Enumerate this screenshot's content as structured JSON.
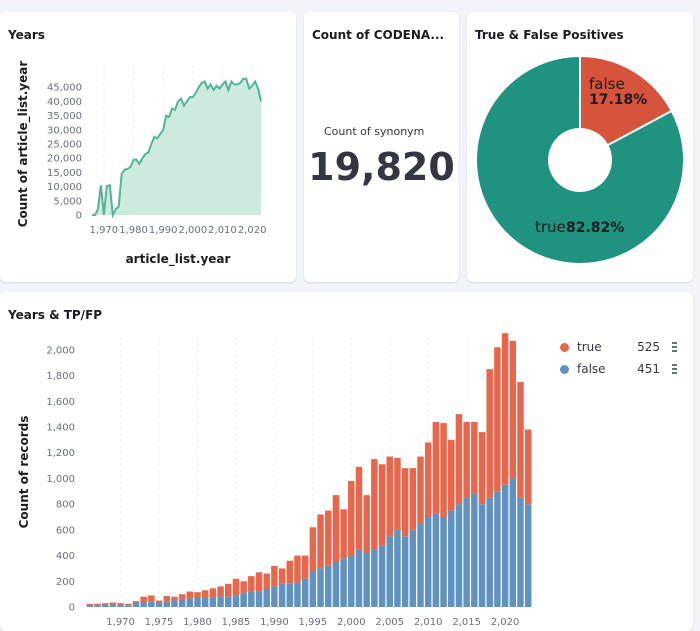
{
  "panels": {
    "years": {
      "title": "Years"
    },
    "count": {
      "title": "Count of CODENA...",
      "metric_label": "Count of synonym",
      "metric_value": "19,820"
    },
    "tf": {
      "title": "True & False Positives"
    },
    "ytf": {
      "title": "Years & TP/FP"
    }
  },
  "colors": {
    "true": "#e7664c",
    "false": "#6092c0",
    "donut_true": "#209280",
    "donut_false": "#d6533c",
    "area_line": "#54b399",
    "area_fill": "#cdeadf"
  },
  "chart_data": [
    {
      "type": "area",
      "title": "Years",
      "xlabel": "article_list.year",
      "ylabel": "Count of article_list.year",
      "xlim": [
        1966,
        2024
      ],
      "ylim": [
        0,
        50000
      ],
      "xticks": [
        "1,970",
        "1,980",
        "1,990",
        "2,000",
        "2,010",
        "2,020"
      ],
      "yticks": [
        "0",
        "5,000",
        "10,000",
        "15,000",
        "20,000",
        "25,000",
        "30,000",
        "35,000",
        "40,000",
        "45,000"
      ],
      "x": [
        1966,
        1967,
        1968,
        1969,
        1970,
        1971,
        1972,
        1973,
        1974,
        1975,
        1976,
        1977,
        1978,
        1979,
        1980,
        1981,
        1982,
        1983,
        1984,
        1985,
        1986,
        1987,
        1988,
        1989,
        1990,
        1991,
        1992,
        1993,
        1994,
        1995,
        1996,
        1997,
        1998,
        1999,
        2000,
        2001,
        2002,
        2003,
        2004,
        2005,
        2006,
        2007,
        2008,
        2009,
        2010,
        2011,
        2012,
        2013,
        2014,
        2015,
        2016,
        2017,
        2018,
        2019,
        2020,
        2021,
        2022,
        2023
      ],
      "y": [
        0,
        0,
        2000,
        10500,
        0,
        10200,
        10500,
        0,
        2000,
        3000,
        14500,
        16000,
        16200,
        17000,
        19500,
        19500,
        18000,
        20000,
        21500,
        22000,
        25000,
        27500,
        27000,
        28500,
        30000,
        35000,
        34500,
        37500,
        37000,
        40000,
        41000,
        38500,
        40000,
        41500,
        41500,
        43000,
        45000,
        46500,
        47000,
        44500,
        46000,
        44000,
        45500,
        44500,
        46000,
        47000,
        44000,
        47000,
        46000,
        46000,
        46500,
        48000,
        48000,
        44500,
        45500,
        47000,
        44500,
        40000
      ]
    },
    {
      "type": "pie",
      "title": "True & False Positives",
      "labels": [
        "true",
        "false"
      ],
      "values": [
        82.82,
        17.18
      ],
      "display": [
        "82.82%",
        "17.18%"
      ]
    },
    {
      "type": "bar",
      "stacked": true,
      "title": "Years & TP/FP",
      "ylabel": "Count of records",
      "ylim": [
        0,
        2100
      ],
      "yticks": [
        "0",
        "200",
        "400",
        "600",
        "800",
        "1,000",
        "1,200",
        "1,400",
        "1,600",
        "1,800",
        "2,000"
      ],
      "xticks": [
        "1,970",
        "1,975",
        "1,980",
        "1,985",
        "1,990",
        "1,995",
        "2,000",
        "2,005",
        "2,010",
        "2,015",
        "2,020"
      ],
      "categories": [
        1966,
        1967,
        1968,
        1969,
        1970,
        1971,
        1972,
        1973,
        1974,
        1975,
        1976,
        1977,
        1978,
        1979,
        1980,
        1981,
        1982,
        1983,
        1984,
        1985,
        1986,
        1987,
        1988,
        1989,
        1990,
        1991,
        1992,
        1993,
        1994,
        1995,
        1996,
        1997,
        1998,
        1999,
        2000,
        2001,
        2002,
        2003,
        2004,
        2005,
        2006,
        2007,
        2008,
        2009,
        2010,
        2011,
        2012,
        2013,
        2014,
        2015,
        2016,
        2017,
        2018,
        2019,
        2020,
        2021,
        2022,
        2023
      ],
      "legend": [
        {
          "name": "true",
          "value": "525"
        },
        {
          "name": "false",
          "value": "451"
        }
      ],
      "series": [
        {
          "name": "false",
          "values": [
            15,
            15,
            20,
            20,
            15,
            10,
            35,
            35,
            45,
            35,
            40,
            50,
            60,
            65,
            70,
            70,
            75,
            80,
            80,
            90,
            110,
            120,
            120,
            140,
            160,
            180,
            180,
            190,
            220,
            280,
            300,
            320,
            350,
            380,
            400,
            450,
            420,
            450,
            480,
            550,
            600,
            550,
            600,
            650,
            700,
            730,
            700,
            750,
            800,
            850,
            880,
            800,
            850,
            900,
            950,
            1000,
            850,
            800
          ]
        },
        {
          "name": "true",
          "values": [
            10,
            10,
            10,
            15,
            15,
            15,
            10,
            45,
            45,
            15,
            45,
            30,
            40,
            55,
            45,
            60,
            70,
            80,
            100,
            130,
            90,
            120,
            150,
            120,
            160,
            120,
            180,
            210,
            180,
            340,
            420,
            430,
            520,
            380,
            580,
            640,
            450,
            700,
            630,
            620,
            560,
            530,
            480,
            520,
            580,
            710,
            730,
            550,
            700,
            590,
            560,
            560,
            1000,
            1120,
            1180,
            1070,
            900,
            580
          ]
        }
      ]
    }
  ]
}
